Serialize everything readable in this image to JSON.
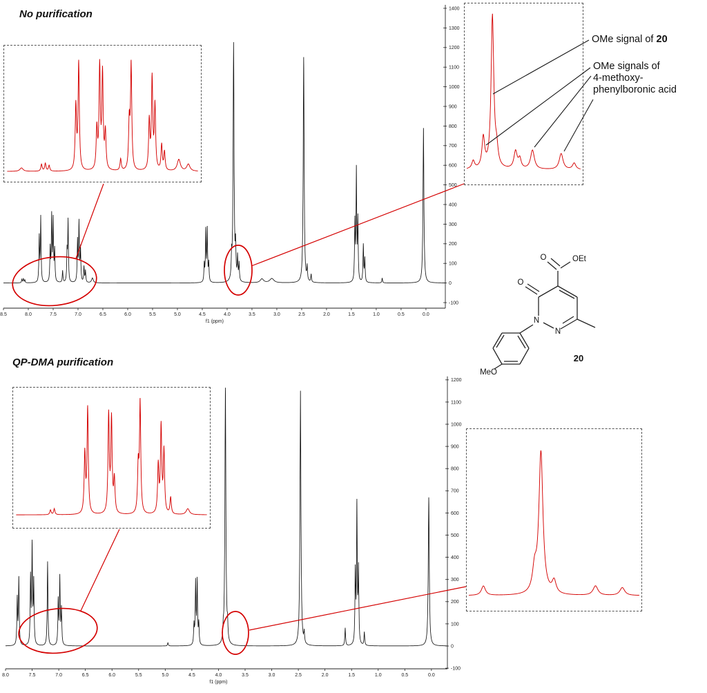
{
  "sections": {
    "top": {
      "title": "No purification"
    },
    "bottom": {
      "title": "QP-DMA purification"
    }
  },
  "annotations": {
    "ome20_prefix": "OMe signal of ",
    "ome20_bold": "20",
    "boronic_line1": "OMe signals of",
    "boronic_line2": "4-methoxy-",
    "boronic_line3": "phenylboronic acid"
  },
  "structure": {
    "ester_O": "O",
    "ester_OEt": "OEt",
    "ring_O": "O",
    "N1": "N",
    "N2": "N",
    "OMe_label": "MeO",
    "compound_number": "20"
  },
  "colors": {
    "trace_black": "#141414",
    "trace_red": "#d40000",
    "annotation_line": "#1a1a1a",
    "axis": "#222222"
  },
  "chart_data": [
    {
      "id": "top_main",
      "type": "line",
      "title": "No purification",
      "xlabel": "f1 (ppm)",
      "ylabel": "",
      "x_unit": "ppm",
      "x_range": [
        8.5,
        -0.39
      ],
      "x_ticks": [
        8.5,
        8.0,
        7.5,
        7.0,
        6.5,
        6.0,
        5.5,
        5.0,
        4.5,
        4.0,
        3.5,
        3.0,
        2.5,
        2.0,
        1.5,
        1.0,
        0.5,
        0.0
      ],
      "y_ticks": [
        1400,
        1300,
        1200,
        1100,
        1000,
        900,
        800,
        700,
        600,
        500,
        400,
        300,
        200,
        100,
        0,
        -100
      ],
      "color": "#141414",
      "default_width": 0.008,
      "peaks": [
        [
          8.13,
          18
        ],
        [
          8.1,
          22
        ],
        [
          8.07,
          15
        ],
        [
          7.78,
          230
        ],
        [
          7.75,
          330
        ],
        [
          7.56,
          170
        ],
        [
          7.53,
          330
        ],
        [
          7.5,
          310
        ],
        [
          7.47,
          160
        ],
        [
          7.31,
          60
        ],
        [
          7.22,
          150
        ],
        [
          7.2,
          310
        ],
        [
          7.01,
          210
        ],
        [
          6.98,
          300
        ],
        [
          6.95,
          170
        ],
        [
          6.88,
          80
        ],
        [
          6.85,
          60
        ],
        [
          6.71,
          25,
          0.02
        ],
        [
          4.46,
          90
        ],
        [
          4.43,
          260
        ],
        [
          4.4,
          265
        ],
        [
          4.37,
          95
        ],
        [
          3.91,
          110
        ],
        [
          3.87,
          1215,
          0.011
        ],
        [
          3.83,
          160
        ],
        [
          3.79,
          120
        ],
        [
          3.76,
          90
        ],
        [
          3.3,
          20,
          0.04
        ],
        [
          3.1,
          22,
          0.05
        ],
        [
          2.46,
          1150,
          0.011
        ],
        [
          2.39,
          70
        ],
        [
          2.31,
          40
        ],
        [
          1.43,
          300
        ],
        [
          1.4,
          560
        ],
        [
          1.37,
          310
        ],
        [
          1.26,
          190
        ],
        [
          1.23,
          120
        ],
        [
          0.88,
          25
        ],
        [
          0.05,
          790,
          0.011
        ]
      ]
    },
    {
      "id": "top_left_inset",
      "type": "line",
      "title": "aromatic region zoom (no purification)",
      "x_range": [
        8.5,
        6.5
      ],
      "color": "#d40000",
      "default_width": 0.008,
      "peaks": [
        [
          8.35,
          3,
          0.02
        ],
        [
          8.14,
          6
        ],
        [
          8.1,
          7
        ],
        [
          8.06,
          5
        ],
        [
          7.78,
          55
        ],
        [
          7.75,
          92
        ],
        [
          7.56,
          35
        ],
        [
          7.53,
          88
        ],
        [
          7.5,
          82
        ],
        [
          7.47,
          32
        ],
        [
          7.31,
          10
        ],
        [
          7.22,
          40
        ],
        [
          7.2,
          90
        ],
        [
          7.01,
          42
        ],
        [
          6.98,
          78
        ],
        [
          6.95,
          55
        ],
        [
          6.88,
          22
        ],
        [
          6.85,
          16
        ],
        [
          6.7,
          10,
          0.02
        ],
        [
          6.6,
          6,
          0.02
        ]
      ]
    },
    {
      "id": "top_right_inset",
      "type": "line",
      "title": "OMe region zoom (no purification)",
      "x_range": [
        3.95,
        3.6
      ],
      "color": "#d40000",
      "default_width": 0.005,
      "peaks": [
        [
          3.93,
          5
        ],
        [
          3.899,
          19
        ],
        [
          3.871,
          96
        ],
        [
          3.858,
          10
        ],
        [
          3.8,
          11,
          0.006
        ],
        [
          3.787,
          6
        ],
        [
          3.748,
          12,
          0.007
        ],
        [
          3.66,
          10,
          0.007
        ],
        [
          3.62,
          4,
          0.006
        ]
      ]
    },
    {
      "id": "bottom_main",
      "type": "line",
      "title": "QP-DMA purification",
      "xlabel": "f1 (ppm)",
      "ylabel": "",
      "x_unit": "ppm",
      "x_range": [
        8.0,
        -0.3
      ],
      "x_ticks": [
        8.0,
        7.5,
        7.0,
        6.5,
        6.0,
        5.5,
        5.0,
        4.5,
        4.0,
        3.5,
        3.0,
        2.5,
        2.0,
        1.5,
        1.0,
        0.5,
        0.0
      ],
      "y_ticks": [
        1200,
        1100,
        1000,
        900,
        800,
        700,
        600,
        500,
        400,
        300,
        200,
        100,
        0,
        -100
      ],
      "color": "#141414",
      "default_width": 0.008,
      "peaks": [
        [
          7.78,
          210
        ],
        [
          7.75,
          300
        ],
        [
          7.53,
          300
        ],
        [
          7.5,
          440
        ],
        [
          7.47,
          280
        ],
        [
          7.21,
          380
        ],
        [
          7.01,
          200
        ],
        [
          6.98,
          300
        ],
        [
          6.95,
          160
        ],
        [
          4.95,
          15
        ],
        [
          4.46,
          90
        ],
        [
          4.43,
          280
        ],
        [
          4.4,
          285
        ],
        [
          4.37,
          95
        ],
        [
          3.91,
          50
        ],
        [
          3.87,
          1160,
          0.011
        ],
        [
          3.83,
          70
        ],
        [
          2.46,
          1150,
          0.011
        ],
        [
          2.39,
          50
        ],
        [
          1.62,
          80
        ],
        [
          1.43,
          320
        ],
        [
          1.4,
          620
        ],
        [
          1.37,
          330
        ],
        [
          1.26,
          60
        ],
        [
          0.05,
          670,
          0.011
        ]
      ]
    },
    {
      "id": "bottom_left_inset",
      "type": "line",
      "title": "aromatic region zoom (QP-DMA purification)",
      "x_range": [
        8.5,
        6.5
      ],
      "color": "#d40000",
      "default_width": 0.008,
      "peaks": [
        [
          8.14,
          4
        ],
        [
          8.1,
          5
        ],
        [
          7.78,
          50
        ],
        [
          7.75,
          88
        ],
        [
          7.53,
          82
        ],
        [
          7.5,
          78
        ],
        [
          7.47,
          28
        ],
        [
          7.22,
          38
        ],
        [
          7.2,
          92
        ],
        [
          7.01,
          40
        ],
        [
          6.98,
          72
        ],
        [
          6.95,
          52
        ],
        [
          6.88,
          14
        ],
        [
          6.7,
          5,
          0.02
        ]
      ]
    },
    {
      "id": "bottom_right_inset",
      "type": "line",
      "title": "OMe region zoom (QP-DMA purification)",
      "x_range": [
        4.02,
        3.67
      ],
      "color": "#d40000",
      "default_width": 0.005,
      "peaks": [
        [
          3.99,
          6
        ],
        [
          3.885,
          14
        ],
        [
          3.872,
          90
        ],
        [
          3.845,
          8
        ],
        [
          3.76,
          6,
          0.006
        ],
        [
          3.705,
          5,
          0.006
        ]
      ]
    }
  ]
}
